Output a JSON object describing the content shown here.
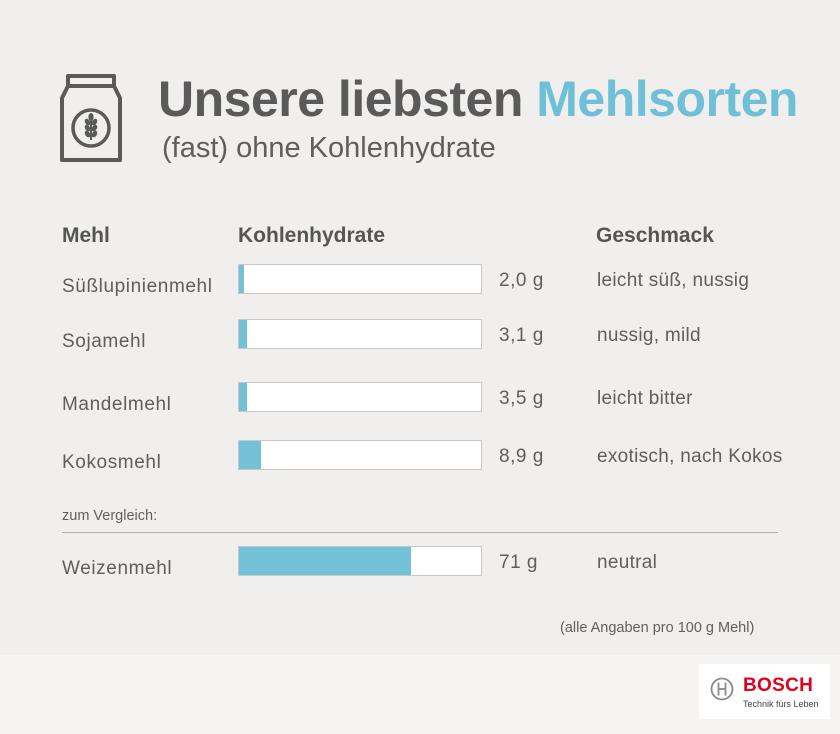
{
  "header": {
    "title_main": "Unsere liebsten ",
    "title_accent": "Mehlsorten",
    "subtitle": "(fast) ohne Kohlenhydrate"
  },
  "table": {
    "col_flour": "Mehl",
    "col_carbs": "Kohlenhydrate",
    "col_taste": "Geschmack",
    "compare_label": "zum Vergleich:",
    "footnote": "(alle Angaben pro 100 g Mehl)"
  },
  "chart_data": {
    "type": "bar",
    "title": "Unsere liebsten Mehlsorten",
    "subtitle": "(fast) ohne Kohlenhydrate",
    "xlabel": "Kohlenhydrate",
    "ylabel": "Mehl",
    "unit": "g",
    "xlim": [
      0,
      100
    ],
    "categories": [
      "Süßlupinienmehl",
      "Sojamehl",
      "Mandelmehl",
      "Kokosmehl",
      "Weizenmehl"
    ],
    "values": [
      2.0,
      3.1,
      3.5,
      8.9,
      71
    ],
    "value_labels": [
      "2,0 g",
      "3,1 g",
      "3,5 g",
      "8,9 g",
      "71 g"
    ],
    "taste": [
      "leicht süß, nussig",
      "nussig, mild",
      "leicht bitter",
      "exotisch, nach Kokos",
      "neutral"
    ],
    "bar_color": "#72c1d7",
    "grid": false,
    "legend": "none"
  },
  "brand": {
    "name": "BOSCH",
    "slogan": "Technik fürs Leben",
    "color": "#e2001a"
  },
  "icons": {
    "flour": "flour-bag-icon",
    "brand": "bosch-armature-icon"
  }
}
